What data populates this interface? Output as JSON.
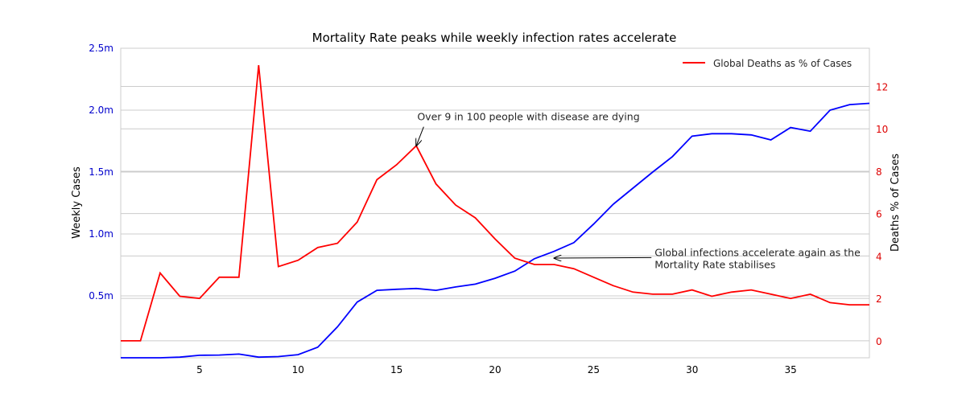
{
  "chart_data": {
    "type": "line",
    "title": "Mortality Rate peaks while weekly infection rates accelerate",
    "xlabel": "",
    "xlim": [
      1,
      39
    ],
    "x_ticks": [
      5,
      10,
      15,
      20,
      25,
      30,
      35
    ],
    "grid": "horizontal",
    "legend_position": "top-right",
    "x": [
      1,
      2,
      3,
      4,
      5,
      6,
      7,
      8,
      9,
      10,
      11,
      12,
      13,
      14,
      15,
      16,
      17,
      18,
      19,
      20,
      21,
      22,
      23,
      24,
      25,
      26,
      27,
      28,
      29,
      30,
      31,
      32,
      33,
      34,
      35,
      36,
      37,
      38,
      39
    ],
    "left_axis": {
      "label": "Weekly Cases",
      "color": "#0000cc",
      "ylim": [
        0,
        2500000
      ],
      "ticks": [
        500000,
        1000000,
        1500000,
        2000000,
        2500000
      ],
      "tick_labels": [
        "0.5m",
        "1.0m",
        "1.5m",
        "2.0m",
        "2.5m"
      ]
    },
    "right_axis": {
      "label": "Deaths % of Cases",
      "color": "#dd0000",
      "ylim": [
        -0.8,
        13.8
      ],
      "ticks": [
        0,
        2,
        4,
        6,
        8,
        10,
        12
      ],
      "tick_labels": [
        "0",
        "2",
        "4",
        "6",
        "8",
        "10",
        "12"
      ]
    },
    "series": [
      {
        "name": "",
        "axis": "left",
        "color": "#0000ff",
        "values": [
          0,
          0,
          0,
          5000,
          20000,
          22000,
          30000,
          5000,
          10000,
          25000,
          85000,
          250000,
          450000,
          545000,
          553000,
          560000,
          545000,
          572000,
          595000,
          642000,
          700000,
          800000,
          860000,
          930000,
          1080000,
          1240000,
          1370000,
          1500000,
          1625000,
          1790000,
          1810000,
          1810000,
          1800000,
          1760000,
          1860000,
          1830000,
          2000000,
          2045000,
          2055000
        ]
      },
      {
        "name": "Global Deaths as % of Cases",
        "axis": "right",
        "color": "#ff0000",
        "values": [
          0,
          0,
          3.2,
          2.1,
          2.0,
          3.0,
          3.0,
          13.0,
          3.5,
          3.8,
          4.4,
          4.6,
          5.6,
          7.6,
          8.3,
          9.2,
          7.4,
          6.4,
          5.8,
          4.8,
          3.9,
          3.6,
          3.6,
          3.4,
          3.0,
          2.6,
          2.3,
          2.2,
          2.2,
          2.4,
          2.1,
          2.3,
          2.4,
          2.2,
          2.0,
          2.2,
          1.8,
          1.7,
          1.7
        ]
      }
    ],
    "annotations": [
      {
        "text": "Over 9 in 100 people with disease are dying",
        "target_x": 16,
        "target_y": 9.2,
        "axis": "right",
        "text_x": 16.05,
        "text_y": 10.4
      },
      {
        "lines": [
          "Global infections accelerate again as the",
          "Mortality Rate stabilises"
        ],
        "target_x": 23,
        "target_y": 3.9,
        "axis": "right",
        "text_x": 28.1,
        "text_y": 4.0
      }
    ]
  }
}
